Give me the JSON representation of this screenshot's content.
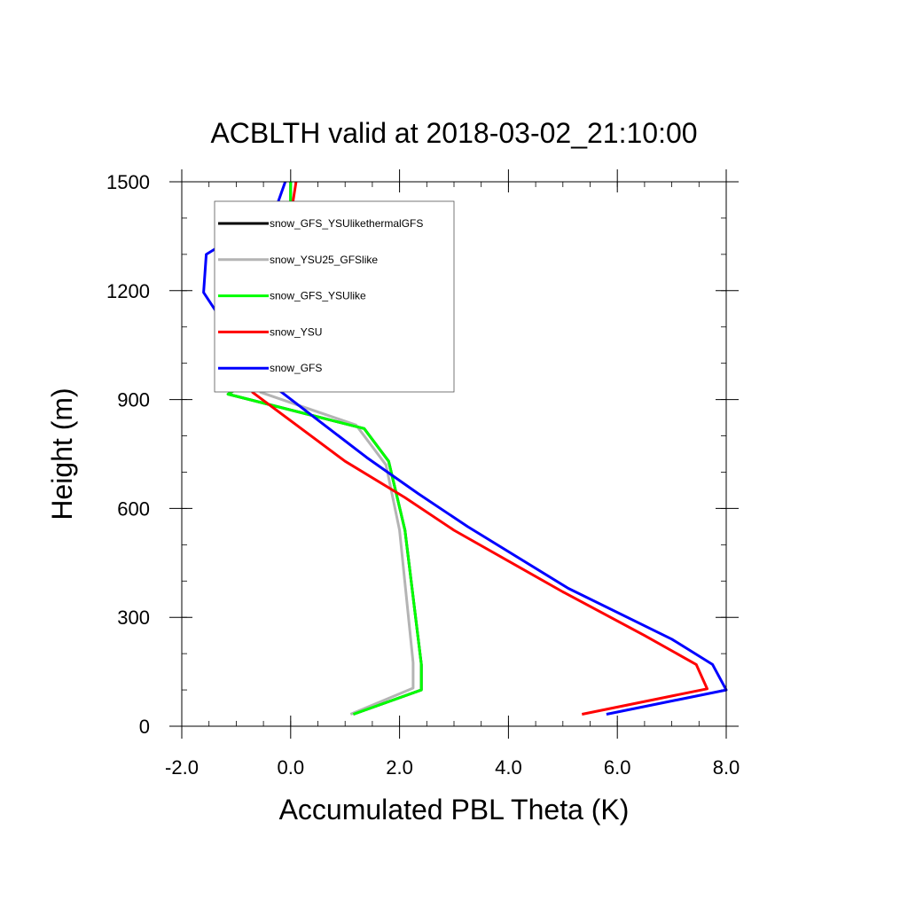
{
  "chart_data": {
    "type": "line",
    "title": "ACBLTH valid at 2018-03-02_21:10:00",
    "xlabel": "Accumulated PBL Theta (K)",
    "ylabel": "Height (m)",
    "xlim": [
      -2.0,
      8.0
    ],
    "ylim": [
      0,
      1500
    ],
    "xticks": [
      -2.0,
      0.0,
      2.0,
      4.0,
      6.0,
      8.0
    ],
    "xtick_labels": [
      "-2.0",
      "0.0",
      "2.0",
      "4.0",
      "6.0",
      "8.0"
    ],
    "yticks": [
      0,
      300,
      600,
      900,
      1200,
      1500
    ],
    "ytick_labels": [
      "0",
      "300",
      "600",
      "900",
      "1200",
      "1500"
    ],
    "legend_position": "top-left",
    "grid": false,
    "series": [
      {
        "name": "snow_GFS_YSUlikethermalGFS",
        "color": "#000000",
        "points": [
          [
            1.15,
            33
          ],
          [
            2.4,
            100
          ],
          [
            2.4,
            170
          ],
          [
            2.1,
            540
          ],
          [
            1.8,
            730
          ],
          [
            1.35,
            820
          ],
          [
            -1.15,
            915
          ],
          [
            -0.1,
            1010
          ],
          [
            -0.02,
            1120
          ],
          [
            0.0,
            1500
          ]
        ]
      },
      {
        "name": "snow_YSU25_GFSlike",
        "color": "#b4b4b4",
        "points": [
          [
            1.1,
            33
          ],
          [
            2.25,
            105
          ],
          [
            2.25,
            175
          ],
          [
            2.0,
            540
          ],
          [
            1.75,
            720
          ],
          [
            1.2,
            830
          ],
          [
            -0.55,
            920
          ],
          [
            -0.15,
            1010
          ],
          [
            -0.02,
            1120
          ],
          [
            0.0,
            1500
          ]
        ]
      },
      {
        "name": "snow_GFS_YSUlike",
        "color": "#00ff00",
        "points": [
          [
            1.15,
            33
          ],
          [
            2.4,
            100
          ],
          [
            2.4,
            170
          ],
          [
            2.1,
            540
          ],
          [
            1.8,
            730
          ],
          [
            1.35,
            820
          ],
          [
            -1.15,
            915
          ],
          [
            -0.1,
            1010
          ],
          [
            -0.02,
            1120
          ],
          [
            0.0,
            1500
          ]
        ]
      },
      {
        "name": "snow_YSU",
        "color": "#ff0000",
        "points": [
          [
            5.35,
            33
          ],
          [
            7.65,
            103
          ],
          [
            7.45,
            170
          ],
          [
            6.5,
            250
          ],
          [
            5.0,
            370
          ],
          [
            3.0,
            540
          ],
          [
            2.1,
            630
          ],
          [
            1.0,
            730
          ],
          [
            -0.7,
            920
          ],
          [
            -0.75,
            990
          ],
          [
            -0.95,
            1095
          ],
          [
            -0.4,
            1230
          ],
          [
            -0.1,
            1310
          ],
          [
            0.1,
            1500
          ]
        ]
      },
      {
        "name": "snow_GFS",
        "color": "#0000ff",
        "points": [
          [
            5.8,
            33
          ],
          [
            8.0,
            100
          ],
          [
            7.75,
            170
          ],
          [
            7.0,
            240
          ],
          [
            5.1,
            380
          ],
          [
            3.25,
            550
          ],
          [
            2.35,
            640
          ],
          [
            1.4,
            740
          ],
          [
            -0.6,
            970
          ],
          [
            -0.7,
            990
          ],
          [
            -1.6,
            1195
          ],
          [
            -1.55,
            1300
          ],
          [
            -0.3,
            1415
          ],
          [
            -0.1,
            1500
          ]
        ]
      }
    ]
  }
}
